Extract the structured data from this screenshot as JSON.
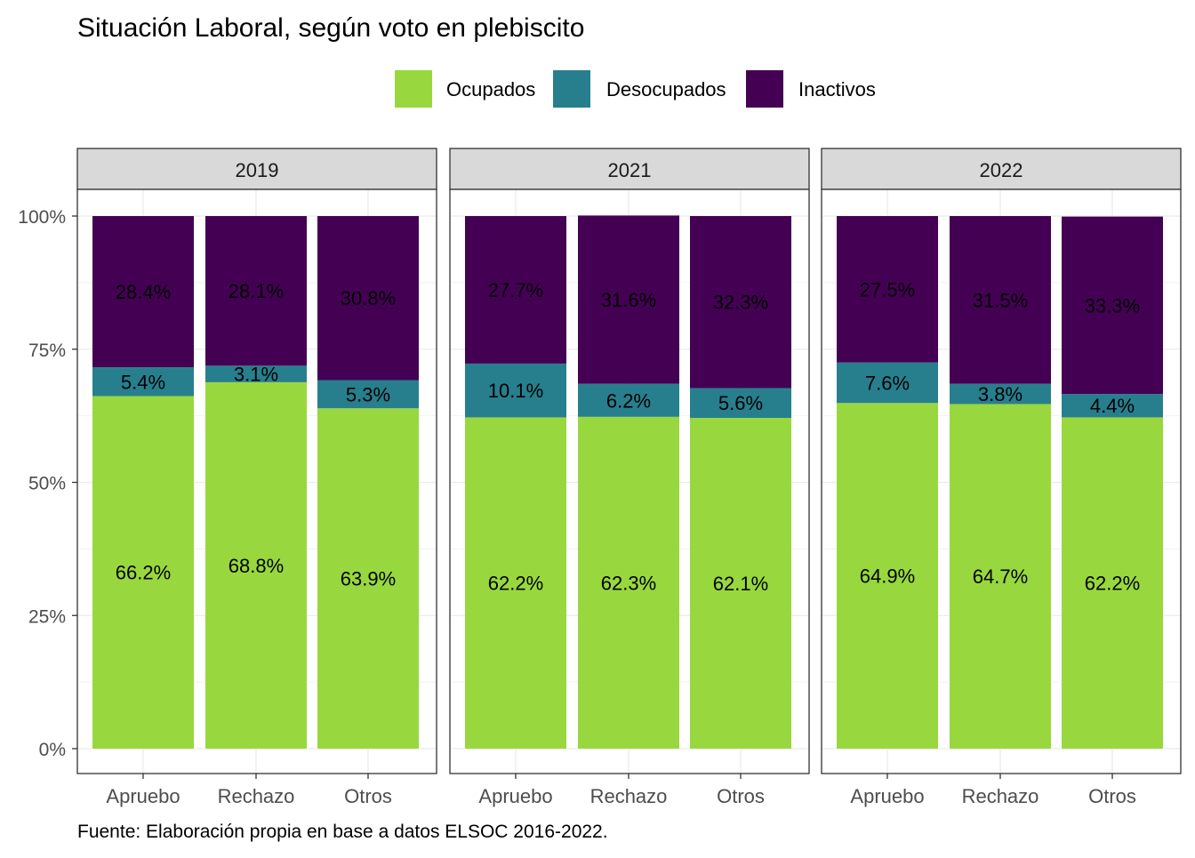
{
  "chart_data": {
    "type": "bar",
    "stacked": true,
    "title": "Situación Laboral, según voto en plebiscito",
    "caption": "Fuente: Elaboración propia en base a datos ELSOC 2016-2022.",
    "legend": {
      "placement": "top",
      "entries": [
        {
          "name": "Ocupados",
          "color": "#98D83E"
        },
        {
          "name": "Desocupados",
          "color": "#277F8E"
        },
        {
          "name": "Inactivos",
          "color": "#440154"
        }
      ]
    },
    "y_ticks": [
      "0%",
      "25%",
      "50%",
      "75%",
      "100%"
    ],
    "ylim": [
      0,
      100
    ],
    "grid": true,
    "categories": [
      "Apruebo",
      "Rechazo",
      "Otros"
    ],
    "panels": [
      {
        "label": "2019",
        "series": [
          {
            "name": "Ocupados",
            "values": [
              66.2,
              68.8,
              63.9
            ],
            "labels": [
              "66.2%",
              "68.8%",
              "63.9%"
            ]
          },
          {
            "name": "Desocupados",
            "values": [
              5.4,
              3.1,
              5.3
            ],
            "labels": [
              "5.4%",
              "3.1%",
              "5.3%"
            ]
          },
          {
            "name": "Inactivos",
            "values": [
              28.4,
              28.1,
              30.8
            ],
            "labels": [
              "28.4%",
              "28.1%",
              "30.8%"
            ]
          }
        ]
      },
      {
        "label": "2021",
        "series": [
          {
            "name": "Ocupados",
            "values": [
              62.2,
              62.3,
              62.1
            ],
            "labels": [
              "62.2%",
              "62.3%",
              "62.1%"
            ]
          },
          {
            "name": "Desocupados",
            "values": [
              10.1,
              6.2,
              5.6
            ],
            "labels": [
              "10.1%",
              "6.2%",
              "5.6%"
            ]
          },
          {
            "name": "Inactivos",
            "values": [
              27.7,
              31.6,
              32.3
            ],
            "labels": [
              "27.7%",
              "31.6%",
              "32.3%"
            ]
          }
        ]
      },
      {
        "label": "2022",
        "series": [
          {
            "name": "Ocupados",
            "values": [
              64.9,
              64.7,
              62.2
            ],
            "labels": [
              "64.9%",
              "64.7%",
              "62.2%"
            ]
          },
          {
            "name": "Desocupados",
            "values": [
              7.6,
              3.8,
              4.4
            ],
            "labels": [
              "7.6%",
              "3.8%",
              "4.4%"
            ]
          },
          {
            "name": "Inactivos",
            "values": [
              27.5,
              31.5,
              33.3
            ],
            "labels": [
              "27.5%",
              "31.5%",
              "33.3%"
            ]
          }
        ]
      }
    ]
  }
}
